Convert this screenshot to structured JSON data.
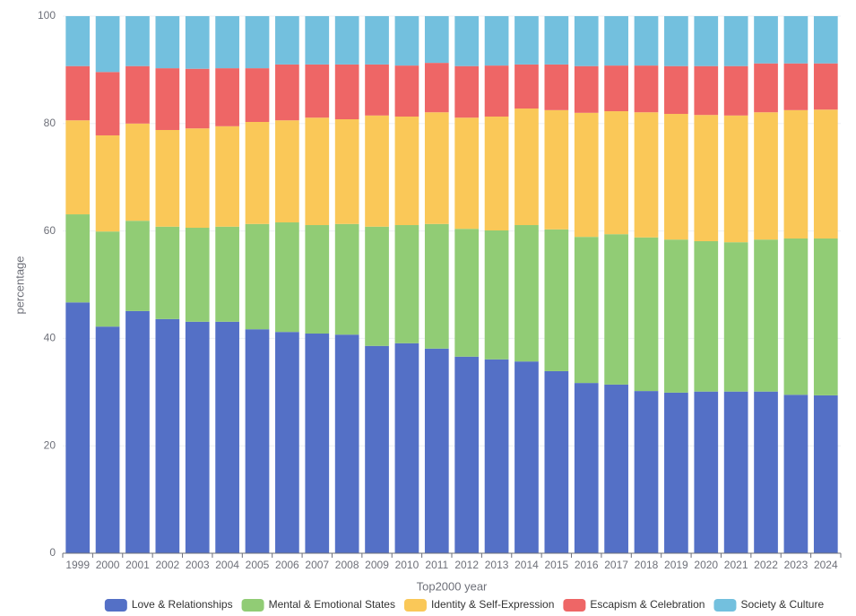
{
  "chart_data": {
    "type": "stacked_bar",
    "x_label": "Top2000 year",
    "y_label": "percentage",
    "categories": [
      "1999",
      "2000",
      "2001",
      "2002",
      "2003",
      "2004",
      "2005",
      "2006",
      "2007",
      "2008",
      "2009",
      "2010",
      "2011",
      "2012",
      "2013",
      "2014",
      "2015",
      "2016",
      "2017",
      "2018",
      "2019",
      "2020",
      "2021",
      "2022",
      "2023",
      "2024"
    ],
    "series": [
      {
        "name": "Love & Relationships",
        "color": "#5470c6",
        "values": [
          46.7,
          42.2,
          45.1,
          43.6,
          43.1,
          43.1,
          41.7,
          41.2,
          40.9,
          40.7,
          38.6,
          39.1,
          38.1,
          36.6,
          36.1,
          35.7,
          33.9,
          31.7,
          31.4,
          30.2,
          29.9,
          30.1,
          30.1,
          30.1,
          29.5,
          29.4
        ]
      },
      {
        "name": "Mental & Emotional States",
        "color": "#91cc75",
        "values": [
          16.4,
          17.7,
          16.8,
          17.2,
          17.5,
          17.7,
          19.6,
          20.4,
          20.2,
          20.6,
          22.2,
          22.0,
          23.2,
          23.8,
          24.0,
          25.4,
          26.4,
          27.2,
          28.0,
          28.6,
          28.5,
          28.0,
          27.8,
          28.3,
          29.1,
          29.2
        ]
      },
      {
        "name": "Identity & Self-Expression",
        "color": "#fac858",
        "values": [
          17.5,
          17.9,
          18.1,
          18.0,
          18.5,
          18.7,
          19.0,
          19.0,
          20.0,
          19.5,
          20.7,
          20.2,
          20.8,
          20.7,
          21.2,
          21.7,
          22.2,
          23.1,
          22.9,
          23.3,
          23.4,
          23.5,
          23.6,
          23.7,
          23.9,
          24.0
        ]
      },
      {
        "name": "Escapism & Celebration",
        "color": "#ee6666",
        "values": [
          10.1,
          11.8,
          10.7,
          11.5,
          11.1,
          10.8,
          10.0,
          10.4,
          9.9,
          10.2,
          9.5,
          9.5,
          9.2,
          9.6,
          9.5,
          8.2,
          8.5,
          8.7,
          8.5,
          8.7,
          8.9,
          9.1,
          9.2,
          9.1,
          8.7,
          8.6
        ]
      },
      {
        "name": "Society & Culture",
        "color": "#73c0de",
        "values": [
          9.3,
          10.4,
          9.3,
          9.7,
          9.8,
          9.7,
          9.7,
          9.0,
          9.0,
          9.0,
          9.0,
          9.2,
          8.7,
          9.3,
          9.2,
          9.0,
          9.0,
          9.3,
          9.2,
          9.2,
          9.3,
          9.3,
          9.3,
          8.8,
          8.8,
          8.8
        ]
      }
    ],
    "ylim": [
      0,
      100
    ],
    "yticks": [
      0,
      20,
      40,
      60,
      80,
      100
    ],
    "grid": true,
    "legend": "bottom"
  }
}
